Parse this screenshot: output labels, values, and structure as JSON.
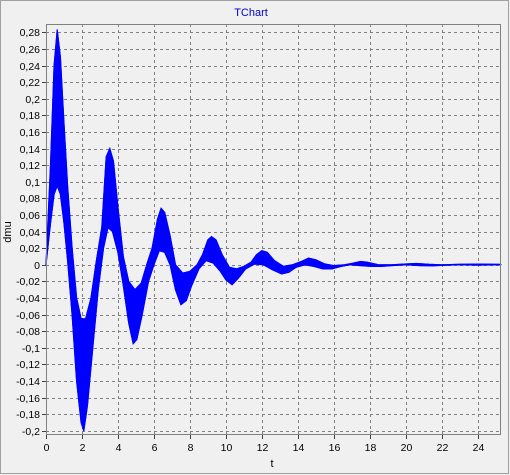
{
  "chart_data": {
    "type": "area",
    "title": "TChart",
    "xlabel": "t",
    "ylabel": "dmu",
    "xlim": [
      0,
      25.3
    ],
    "ylim": [
      -0.205,
      0.29
    ],
    "x_ticks": [
      0,
      2,
      4,
      6,
      8,
      10,
      12,
      14,
      16,
      18,
      20,
      22,
      24
    ],
    "x_tick_labels": [
      "0",
      "2",
      "4",
      "6",
      "8",
      "10",
      "12",
      "14",
      "16",
      "18",
      "20",
      "22",
      "24"
    ],
    "y_ticks": [
      -0.2,
      -0.18,
      -0.16,
      -0.14,
      -0.12,
      -0.1,
      -0.08,
      -0.06,
      -0.04,
      -0.02,
      0,
      0.02,
      0.04,
      0.06,
      0.08,
      0.1,
      0.12,
      0.14,
      0.16,
      0.18,
      0.2,
      0.22,
      0.24,
      0.26,
      0.28
    ],
    "y_tick_labels": [
      "-0,2",
      "-0,18",
      "-0,16",
      "-0,14",
      "-0,12",
      "-0,1",
      "-0,08",
      "-0,06",
      "-0,04",
      "-0,02",
      "0",
      "0,02",
      "0,04",
      "0,06",
      "0,08",
      "0,1",
      "0,12",
      "0,14",
      "0,16",
      "0,18",
      "0,2",
      "0,22",
      "0,24",
      "0,26",
      "0,28"
    ],
    "grid": true,
    "series": [
      {
        "color": "#0000ff",
        "upper_envelope": [
          [
            0,
            0
          ],
          [
            0.25,
            0.12
          ],
          [
            0.45,
            0.24
          ],
          [
            0.62,
            0.283
          ],
          [
            0.8,
            0.25
          ],
          [
            1.0,
            0.17
          ],
          [
            1.2,
            0.095
          ],
          [
            1.45,
            0.02
          ],
          [
            1.7,
            -0.04
          ],
          [
            1.95,
            -0.065
          ],
          [
            2.2,
            -0.065
          ],
          [
            2.5,
            -0.04
          ],
          [
            2.8,
            0.005
          ],
          [
            3.1,
            0.045
          ],
          [
            3.35,
            0.13
          ],
          [
            3.55,
            0.14
          ],
          [
            3.75,
            0.125
          ],
          [
            4.0,
            0.07
          ],
          [
            4.3,
            0.01
          ],
          [
            4.6,
            -0.02
          ],
          [
            4.95,
            -0.03
          ],
          [
            5.3,
            -0.022
          ],
          [
            5.6,
            0.0
          ],
          [
            5.9,
            0.02
          ],
          [
            6.2,
            0.055
          ],
          [
            6.4,
            0.068
          ],
          [
            6.6,
            0.063
          ],
          [
            6.9,
            0.035
          ],
          [
            7.2,
            0.0
          ],
          [
            7.6,
            -0.01
          ],
          [
            8.0,
            -0.008
          ],
          [
            8.4,
            0.0
          ],
          [
            8.7,
            0.012
          ],
          [
            9.0,
            0.03
          ],
          [
            9.2,
            0.034
          ],
          [
            9.45,
            0.03
          ],
          [
            9.8,
            0.012
          ],
          [
            10.2,
            -0.003
          ],
          [
            10.6,
            -0.005
          ],
          [
            11.0,
            -0.002
          ],
          [
            11.4,
            0.003
          ],
          [
            11.7,
            0.012
          ],
          [
            12.0,
            0.017
          ],
          [
            12.3,
            0.015
          ],
          [
            12.7,
            0.005
          ],
          [
            13.2,
            -0.002
          ],
          [
            13.7,
            0.0
          ],
          [
            14.2,
            0.004
          ],
          [
            14.6,
            0.008
          ],
          [
            15.0,
            0.006
          ],
          [
            15.5,
            0.001
          ],
          [
            16.0,
            -0.001
          ],
          [
            16.6,
            0.0
          ],
          [
            17.1,
            0.002
          ],
          [
            17.5,
            0.004
          ],
          [
            17.9,
            0.003
          ],
          [
            18.5,
            0.0
          ],
          [
            19.2,
            0.0
          ],
          [
            20.0,
            0.001
          ],
          [
            20.6,
            0.0016
          ],
          [
            21.3,
            0.0006
          ],
          [
            22.0,
            0.0
          ],
          [
            23.0,
            0.0006
          ],
          [
            24.0,
            0.0008
          ],
          [
            25.3,
            0.0005
          ]
        ],
        "lower_envelope": [
          [
            0,
            0
          ],
          [
            0.25,
            0.05
          ],
          [
            0.45,
            0.085
          ],
          [
            0.62,
            0.095
          ],
          [
            0.8,
            0.085
          ],
          [
            1.0,
            0.05
          ],
          [
            1.2,
            0.005
          ],
          [
            1.45,
            -0.06
          ],
          [
            1.7,
            -0.14
          ],
          [
            1.95,
            -0.19
          ],
          [
            2.1,
            -0.2
          ],
          [
            2.3,
            -0.17
          ],
          [
            2.6,
            -0.1
          ],
          [
            2.9,
            -0.03
          ],
          [
            3.2,
            0.02
          ],
          [
            3.45,
            0.045
          ],
          [
            3.7,
            0.04
          ],
          [
            4.0,
            0.015
          ],
          [
            4.3,
            -0.025
          ],
          [
            4.6,
            -0.07
          ],
          [
            4.85,
            -0.095
          ],
          [
            5.05,
            -0.09
          ],
          [
            5.35,
            -0.06
          ],
          [
            5.7,
            -0.02
          ],
          [
            6.0,
            0.0
          ],
          [
            6.3,
            0.017
          ],
          [
            6.6,
            0.015
          ],
          [
            6.9,
            0.0
          ],
          [
            7.2,
            -0.03
          ],
          [
            7.5,
            -0.048
          ],
          [
            7.8,
            -0.043
          ],
          [
            8.1,
            -0.025
          ],
          [
            8.5,
            -0.005
          ],
          [
            8.9,
            0.005
          ],
          [
            9.3,
            0.002
          ],
          [
            9.7,
            -0.008
          ],
          [
            10.0,
            -0.018
          ],
          [
            10.35,
            -0.024
          ],
          [
            10.7,
            -0.016
          ],
          [
            11.1,
            -0.005
          ],
          [
            11.6,
            0.001
          ],
          [
            12.1,
            0.0
          ],
          [
            12.6,
            -0.006
          ],
          [
            13.1,
            -0.011
          ],
          [
            13.5,
            -0.009
          ],
          [
            13.9,
            -0.003
          ],
          [
            14.4,
            0.0
          ],
          [
            14.9,
            -0.002
          ],
          [
            15.4,
            -0.005
          ],
          [
            15.9,
            -0.005
          ],
          [
            16.4,
            -0.002
          ],
          [
            16.9,
            0.0
          ],
          [
            17.5,
            -0.001
          ],
          [
            18.1,
            -0.002
          ],
          [
            18.6,
            -0.002
          ],
          [
            19.2,
            -0.001
          ],
          [
            20.0,
            0.0
          ],
          [
            20.8,
            -0.001
          ],
          [
            21.5,
            -0.0012
          ],
          [
            22.3,
            -0.0005
          ],
          [
            23.0,
            0.0
          ],
          [
            24.0,
            -0.0004
          ],
          [
            25.3,
            0.0
          ]
        ]
      }
    ]
  }
}
